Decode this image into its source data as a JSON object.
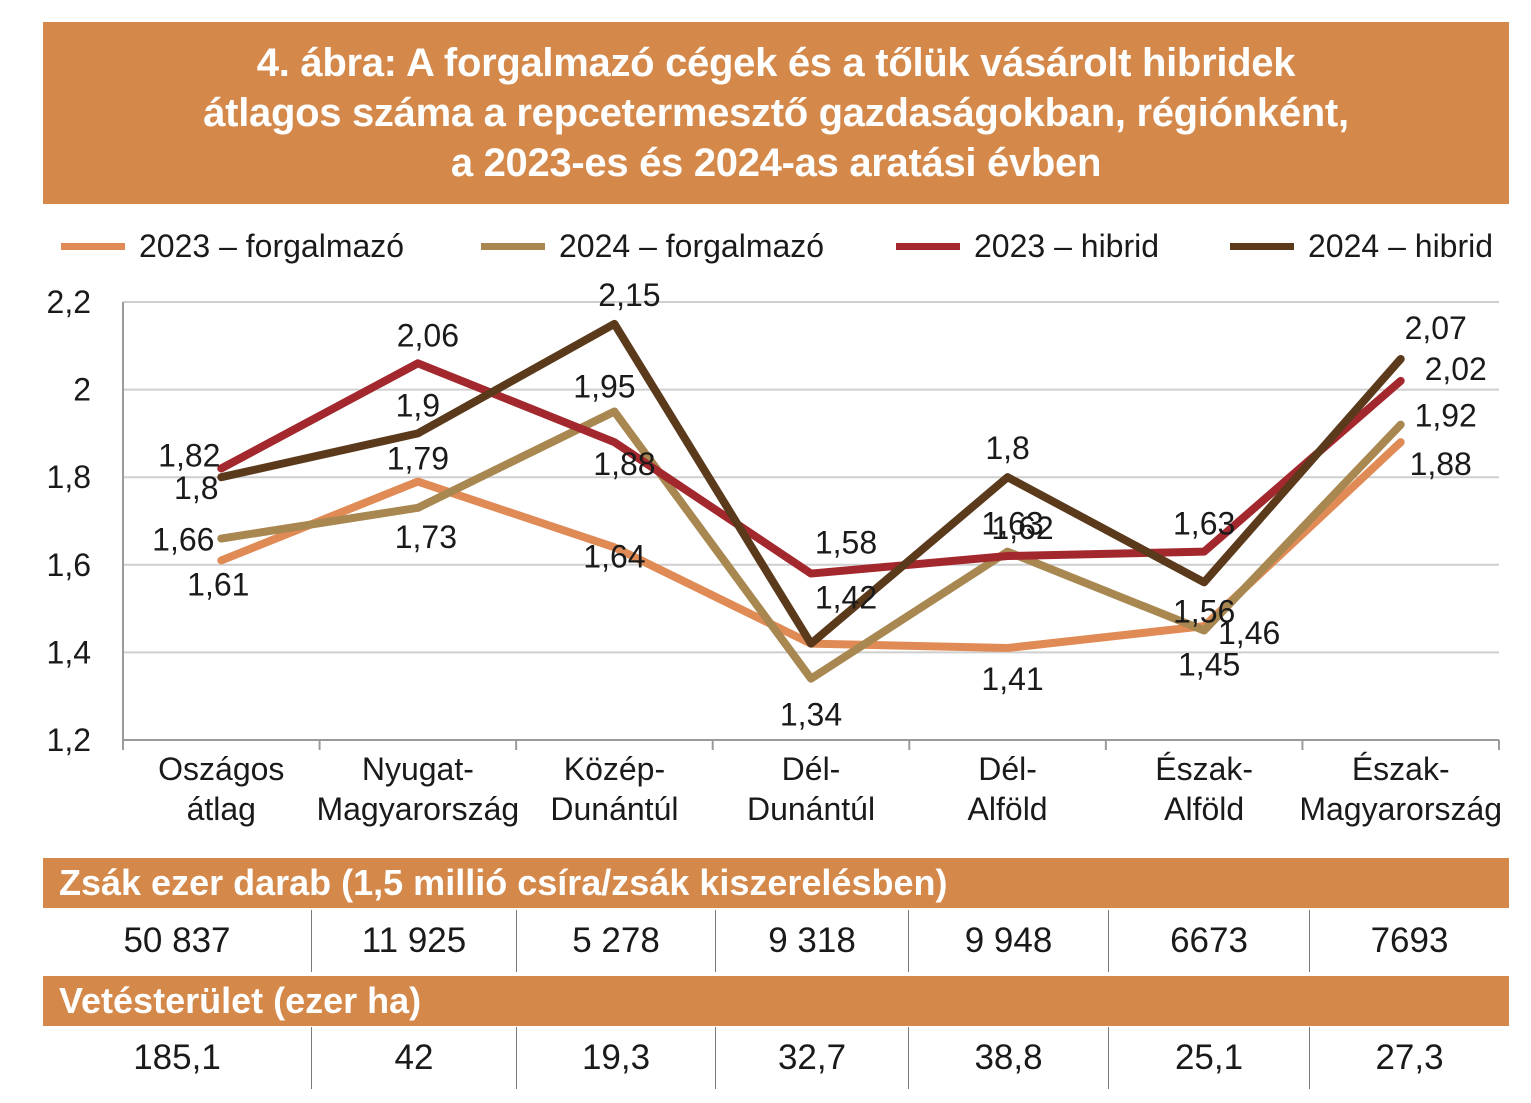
{
  "title": {
    "lines": [
      "4. ábra: A forgalmazó cégek és a tőlük vásárolt hibridek",
      "átlagos száma a repcetermesztő gazdaságokban, régiónként,",
      "a 2023-es és 2024-as aratási évben"
    ]
  },
  "legend": [
    {
      "label": "2023 – forgalmazó",
      "color": "#e08a55"
    },
    {
      "label": "2024 – forgalmazó",
      "color": "#a88750"
    },
    {
      "label": "2023 – hibrid",
      "color": "#a3282e"
    },
    {
      "label": "2024 – hibrid",
      "color": "#5b3a1c"
    }
  ],
  "chart_data": {
    "type": "line",
    "categories": [
      [
        "Oszágos",
        "átlag"
      ],
      [
        "Nyugat-",
        "Magyarország"
      ],
      [
        "Közép-",
        "Dunántúl"
      ],
      [
        "Dél-",
        "Dunántúl"
      ],
      [
        "Dél-",
        "Alföld"
      ],
      [
        "Észak-",
        "Alföld"
      ],
      [
        "Észak-",
        "Magyarország"
      ]
    ],
    "ylim": [
      1.2,
      2.2
    ],
    "yticks": [
      1.2,
      1.4,
      1.6,
      1.8,
      2,
      2.2
    ],
    "ytick_labels": [
      "1,2",
      "1,4",
      "1,6",
      "1,8",
      "2",
      "2,2"
    ],
    "grid": true,
    "legend_position": "top",
    "series": [
      {
        "name": "2023 – forgalmazó",
        "color": "#e08a55",
        "values": [
          1.61,
          1.79,
          1.64,
          1.42,
          1.41,
          1.46,
          1.88
        ],
        "labels": [
          "1,61",
          "1,79",
          "1,64",
          "",
          "1,41",
          "1,46",
          "1,88"
        ]
      },
      {
        "name": "2024 – forgalmazó",
        "color": "#a88750",
        "values": [
          1.66,
          1.73,
          1.95,
          1.34,
          1.63,
          1.45,
          1.92
        ],
        "labels": [
          "1,66",
          "1,73",
          "1,95",
          "1,34",
          "1,63",
          "1,45",
          "1,92"
        ]
      },
      {
        "name": "2023 – hibrid",
        "color": "#a3282e",
        "values": [
          1.82,
          2.06,
          1.88,
          1.58,
          1.62,
          1.63,
          2.02
        ],
        "labels": [
          "1,82",
          "2,06",
          "1,88",
          "1,58",
          "1,62",
          "1,63",
          "2,02"
        ]
      },
      {
        "name": "2024 – hibrid",
        "color": "#5b3a1c",
        "values": [
          1.8,
          1.9,
          2.15,
          1.42,
          1.8,
          1.56,
          2.07
        ],
        "labels": [
          "1,8",
          "1,9",
          "2,15",
          "1,42",
          "1,8",
          "1,56",
          "2,07"
        ]
      }
    ]
  },
  "table": {
    "sacks_header": "Zsák ezer darab (1,5 millió csíra/zsák kiszerelésben)",
    "sacks_values": [
      "50 837",
      "11 925",
      "5 278",
      "9 318",
      "9 948",
      "6673",
      "7693"
    ],
    "area_header": "Vetésterület (ezer ha)",
    "area_values": [
      "185,1",
      "42",
      "19,3",
      "32,7",
      "38,8",
      "25,1",
      "27,3"
    ]
  }
}
